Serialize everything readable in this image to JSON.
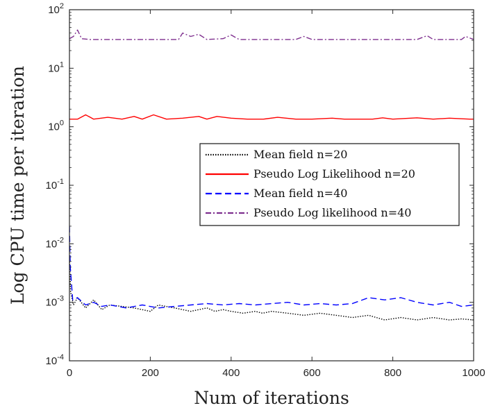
{
  "chart_data": {
    "type": "line",
    "title": "",
    "xlabel": "Num of iterations",
    "ylabel": "Log CPU time per iteration",
    "xlim": [
      0,
      1000
    ],
    "ylim": [
      0.0001,
      100
    ],
    "yscale": "log",
    "grid": false,
    "legend_position": "center-right",
    "xticks": [
      {
        "value": 0,
        "label": "0"
      },
      {
        "value": 200,
        "label": "200"
      },
      {
        "value": 400,
        "label": "400"
      },
      {
        "value": 600,
        "label": "600"
      },
      {
        "value": 800,
        "label": "800"
      },
      {
        "value": 1000,
        "label": "1000"
      }
    ],
    "yticks": [
      {
        "value": 0.0001,
        "base": "10",
        "exp": "-4"
      },
      {
        "value": 0.001,
        "base": "10",
        "exp": "-3"
      },
      {
        "value": 0.01,
        "base": "10",
        "exp": "-2"
      },
      {
        "value": 0.1,
        "base": "10",
        "exp": "-1"
      },
      {
        "value": 1,
        "base": "10",
        "exp": "0"
      },
      {
        "value": 10,
        "base": "10",
        "exp": "1"
      },
      {
        "value": 100,
        "base": "10",
        "exp": "2"
      }
    ],
    "series": [
      {
        "name": "Mean field n=20",
        "color": "#000000",
        "dash": "dotted",
        "x": [
          0,
          3,
          10,
          20,
          40,
          60,
          80,
          100,
          130,
          160,
          200,
          220,
          260,
          300,
          340,
          360,
          380,
          400,
          430,
          460,
          478,
          500,
          540,
          580,
          620,
          660,
          700,
          740,
          780,
          820,
          860,
          900,
          940,
          970,
          1000
        ],
        "y": [
          0.006,
          0.0015,
          0.0009,
          0.0012,
          0.0008,
          0.0011,
          0.00075,
          0.0009,
          0.00085,
          0.0008,
          0.0007,
          0.0009,
          0.0008,
          0.0007,
          0.0008,
          0.0007,
          0.00075,
          0.0007,
          0.00065,
          0.0007,
          0.00065,
          0.0007,
          0.00065,
          0.0006,
          0.00065,
          0.0006,
          0.00055,
          0.0006,
          0.0005,
          0.00055,
          0.0005,
          0.00055,
          0.0005,
          0.00052,
          0.0005
        ]
      },
      {
        "name": "Pseudo Log Likelihood n=20",
        "color": "#ff0000",
        "dash": "solid",
        "x": [
          0,
          20,
          40,
          60,
          95,
          130,
          160,
          180,
          208,
          240,
          280,
          320,
          340,
          365,
          400,
          440,
          480,
          515,
          560,
          600,
          650,
          680,
          700,
          750,
          775,
          800,
          860,
          900,
          940,
          990,
          1000
        ],
        "y": [
          1.35,
          1.35,
          1.6,
          1.35,
          1.45,
          1.35,
          1.5,
          1.35,
          1.6,
          1.35,
          1.4,
          1.5,
          1.35,
          1.5,
          1.4,
          1.35,
          1.35,
          1.45,
          1.35,
          1.35,
          1.4,
          1.35,
          1.35,
          1.35,
          1.42,
          1.35,
          1.42,
          1.35,
          1.4,
          1.35,
          1.35
        ]
      },
      {
        "name": "Mean field n=40",
        "color": "#0000ff",
        "dash": "dashed",
        "x": [
          0,
          2,
          8,
          20,
          40,
          60,
          80,
          100,
          140,
          180,
          220,
          260,
          300,
          340,
          380,
          420,
          460,
          500,
          540,
          580,
          620,
          660,
          700,
          740,
          780,
          820,
          860,
          900,
          940,
          970,
          1000
        ],
        "y": [
          0.02,
          0.004,
          0.0011,
          0.0012,
          0.0009,
          0.001,
          0.00085,
          0.0009,
          0.0008,
          0.0009,
          0.0008,
          0.00085,
          0.0009,
          0.00095,
          0.0009,
          0.00095,
          0.0009,
          0.00095,
          0.001,
          0.0009,
          0.00095,
          0.0009,
          0.00095,
          0.0012,
          0.0011,
          0.0012,
          0.001,
          0.0009,
          0.001,
          0.00085,
          0.0009
        ]
      },
      {
        "name": "Pseudo Log likelihood n=40",
        "color": "#7e2f8e",
        "dash": "dashdot",
        "x": [
          0,
          10,
          20,
          30,
          50,
          80,
          120,
          160,
          200,
          240,
          270,
          280,
          300,
          320,
          340,
          380,
          400,
          420,
          460,
          500,
          560,
          580,
          600,
          650,
          700,
          760,
          800,
          860,
          885,
          900,
          940,
          970,
          980,
          1000
        ],
        "y": [
          32,
          35,
          45,
          32,
          31,
          31,
          31,
          31,
          31,
          31,
          31,
          40,
          35,
          38,
          31,
          32,
          37,
          31,
          31,
          31,
          31,
          35,
          31,
          31,
          31,
          31,
          31,
          31,
          36,
          31,
          31,
          31,
          35,
          31
        ]
      }
    ]
  }
}
